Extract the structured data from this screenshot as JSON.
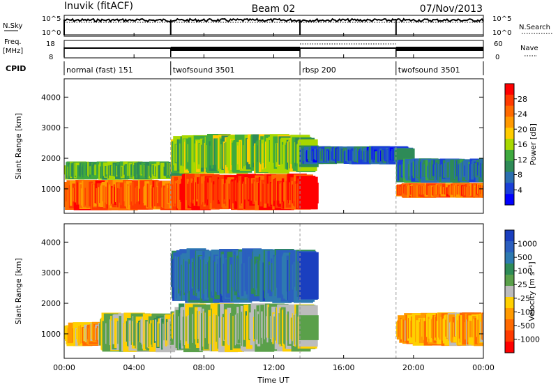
{
  "header": {
    "station": "Inuvik (fitACF)",
    "beam": "Beam 02",
    "date": "07/Nov/2013"
  },
  "params": {
    "nsky_label": "N.Sky",
    "nsearch_label": "N.Search",
    "noise_ticks": [
      "10^5",
      "10^0"
    ],
    "freq_label": "Freq.",
    "freq_unit": "[MHz]",
    "freq_ticks": [
      "18",
      "8"
    ],
    "nave_label": "Nave",
    "nave_ticks": [
      "60",
      "0"
    ],
    "cpid_label": "CPID",
    "cpid_segments": [
      {
        "label": "normal (fast) 151",
        "start_h": 0,
        "end_h": 6.1
      },
      {
        "label": "twofsound 3501",
        "start_h": 6.1,
        "end_h": 13.5
      },
      {
        "label": "rbsp 200",
        "start_h": 13.5,
        "end_h": 19.0
      },
      {
        "label": "twofsound 3501",
        "start_h": 19.0,
        "end_h": 24
      }
    ]
  },
  "axes": {
    "xlabel": "Time UT",
    "x_ticks": [
      "00:00",
      "04:00",
      "08:00",
      "12:00",
      "16:00",
      "20:00",
      "00:00"
    ],
    "ylabel": "Slant Range [km]",
    "y_ticks": [
      "1000",
      "2000",
      "3000",
      "4000"
    ]
  },
  "power_scale": {
    "label": "Power [dB]",
    "ticks": [
      "28",
      "24",
      "20",
      "16",
      "12",
      "8",
      "4"
    ],
    "colors": [
      "#ff0000",
      "#ff3a00",
      "#ff6a00",
      "#ff9900",
      "#ffcc00",
      "#a8d800",
      "#3faa3f",
      "#2e8b57",
      "#2b6fb0",
      "#1a3fd8",
      "#0000ff"
    ]
  },
  "velocity_scale": {
    "label": "Velocity [m s⁻¹]",
    "ticks": [
      "1000",
      "500",
      "100",
      "25",
      "-25",
      "-100",
      "-500",
      "-1000"
    ],
    "colors": [
      "#1a3fbf",
      "#2b5fbf",
      "#2e7ab0",
      "#2e8b57",
      "#5aa04a",
      "#bcbcbc",
      "#ffd000",
      "#ff9a00",
      "#ff6a00",
      "#ff3a00",
      "#ff0000"
    ]
  },
  "chart_data": [
    {
      "type": "heatmap",
      "title": "Power [dB]",
      "xlabel": "Time UT",
      "ylabel": "Slant Range [km]",
      "xlim_hours": [
        0,
        24
      ],
      "ylim": [
        200,
        4600
      ],
      "zlim": [
        0,
        30
      ],
      "regions": [
        {
          "t": [
            0.0,
            6.1
          ],
          "r": [
            300,
            1300
          ],
          "z": 24
        },
        {
          "t": [
            0.0,
            6.1
          ],
          "r": [
            1300,
            1900
          ],
          "z": 12
        },
        {
          "t": [
            6.1,
            13.5
          ],
          "r": [
            300,
            1500
          ],
          "z": 26
        },
        {
          "t": [
            6.1,
            13.5
          ],
          "r": [
            1500,
            2800
          ],
          "z": 14
        },
        {
          "t": [
            13.5,
            19.0
          ],
          "r": [
            1800,
            2400
          ],
          "z": 6
        },
        {
          "t": [
            19.0,
            24.0
          ],
          "r": [
            700,
            1200
          ],
          "z": 24
        },
        {
          "t": [
            19.0,
            24.0
          ],
          "r": [
            1200,
            2000
          ],
          "z": 8
        }
      ]
    },
    {
      "type": "heatmap",
      "title": "Velocity [m s⁻¹]",
      "xlabel": "Time UT",
      "ylabel": "Slant Range [km]",
      "xlim_hours": [
        0,
        24
      ],
      "ylim": [
        200,
        4600
      ],
      "zlim": [
        -1000,
        1000
      ],
      "regions": [
        {
          "t": [
            0.0,
            2.0
          ],
          "r": [
            600,
            1400
          ],
          "z": -300
        },
        {
          "t": [
            2.0,
            6.1
          ],
          "r": [
            400,
            1700
          ],
          "z": 60
        },
        {
          "t": [
            6.1,
            13.5
          ],
          "r": [
            400,
            2000
          ],
          "z": 60
        },
        {
          "t": [
            6.1,
            13.5
          ],
          "r": [
            2000,
            3800
          ],
          "z": 600
        },
        {
          "t": [
            19.0,
            24.0
          ],
          "r": [
            600,
            1700
          ],
          "z": -300
        }
      ]
    }
  ]
}
